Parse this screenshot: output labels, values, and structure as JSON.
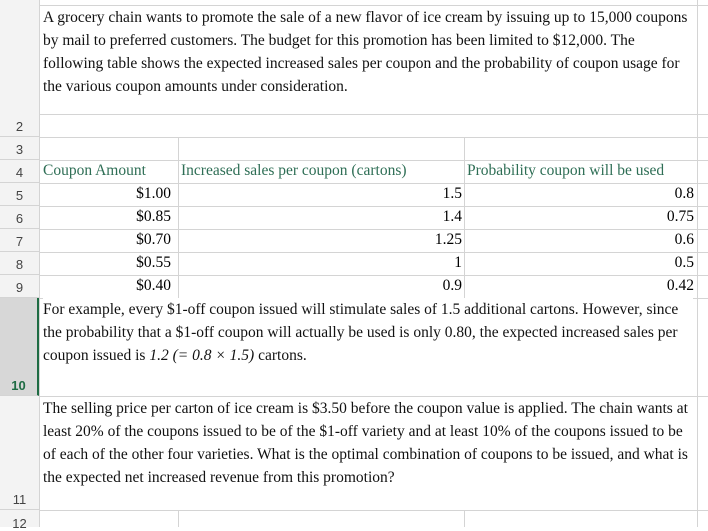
{
  "rows": [
    {
      "label": "2"
    },
    {
      "label": "3"
    },
    {
      "label": "4"
    },
    {
      "label": "5"
    },
    {
      "label": "6"
    },
    {
      "label": "7"
    },
    {
      "label": "8"
    },
    {
      "label": "9"
    },
    {
      "label": "10"
    },
    {
      "label": "11"
    },
    {
      "label": "12"
    }
  ],
  "intro": "A grocery chain wants to promote the sale of a new flavor of ice cream by issuing up to 15,000 coupons by mail to preferred customers. The budget for this promotion has been limited to $12,000. The following table shows the expected increased sales per coupon and the probability of coupon usage for the various coupon amounts under consideration.",
  "table": {
    "headers": {
      "coupon_amount": "Coupon Amount",
      "increased_sales": "Increased sales per coupon (cartons)",
      "probability": "Probability coupon will be used"
    },
    "rows": [
      {
        "amount": "$1.00",
        "sales": "1.5",
        "prob": "0.8"
      },
      {
        "amount": "$0.85",
        "sales": "1.4",
        "prob": "0.75"
      },
      {
        "amount": "$0.70",
        "sales": "1.25",
        "prob": "0.6"
      },
      {
        "amount": "$0.55",
        "sales": "1",
        "prob": "0.5"
      },
      {
        "amount": "$0.40",
        "sales": "0.9",
        "prob": "0.42"
      }
    ]
  },
  "example": {
    "text_before": "For example, every $1-off coupon issued will stimulate sales of 1.5 additional cartons. However, since the probability that a $1-off coupon will actually be used is only 0.80, the expected increased sales per coupon issued is ",
    "formula": "1.2 (= 0.8 × 1.5)",
    "text_after": " cartons."
  },
  "question": "The selling price per carton of ice cream is $3.50 before the coupon value is applied. The chain wants at least 20% of the coupons issued to be of the $1-off variety and at least 10% of the coupons issued to be of each of the other four varieties. What is the optimal combination of coupons to be issued, and what is the expected net increased revenue from this promotion?"
}
